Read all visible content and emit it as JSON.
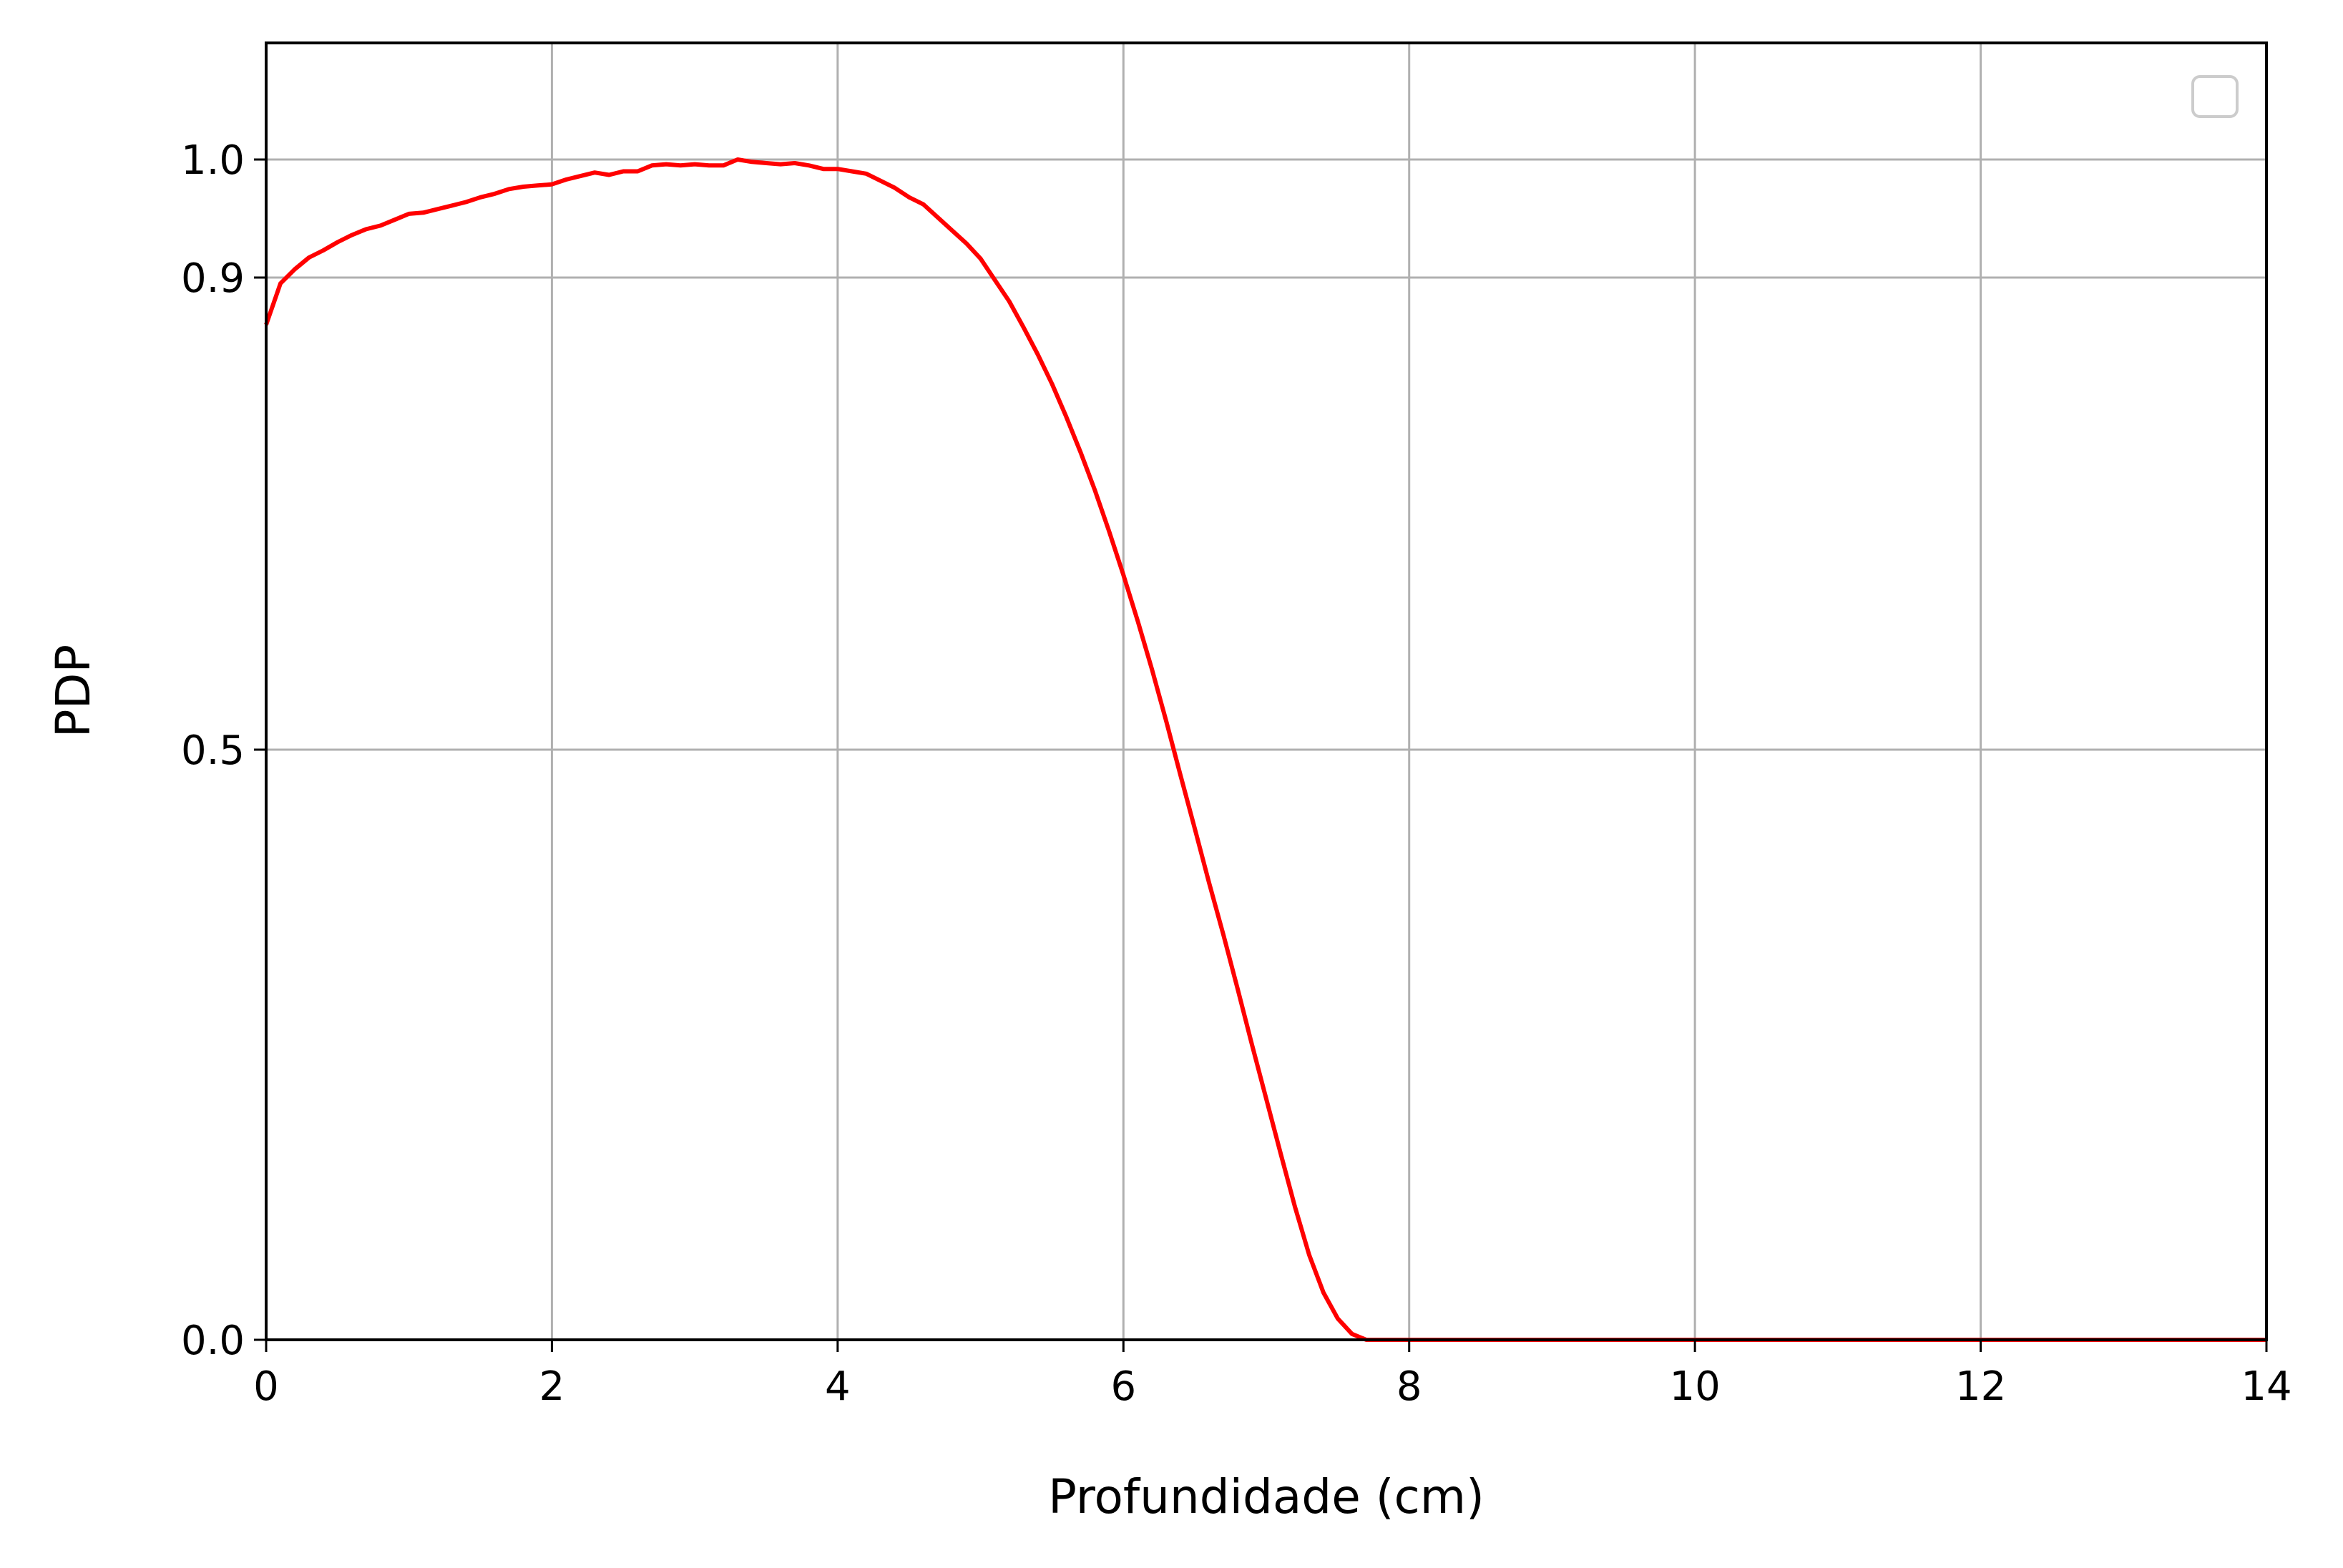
{
  "chart_data": {
    "type": "line",
    "title": "",
    "xlabel": "Profundidade (cm)",
    "ylabel": "PDP",
    "xlim": [
      0,
      14
    ],
    "ylim": [
      0.0,
      1.1
    ],
    "xticks": [
      0,
      2,
      4,
      6,
      8,
      10,
      12,
      14
    ],
    "xtick_labels": [
      "0",
      "2",
      "4",
      "6",
      "8",
      "10",
      "12",
      "14"
    ],
    "yticks": [
      0.0,
      0.5,
      0.9,
      1.0
    ],
    "ytick_labels": [
      "0.0",
      "0.5",
      "0.9",
      "1.0"
    ],
    "grid": true,
    "legend": {
      "placement": "top-right",
      "entries": []
    },
    "colors": {
      "line": "#ff0000",
      "grid": "#b0b0b0",
      "axes": "#000000"
    },
    "series": [
      {
        "x": [
          0.0,
          0.1,
          0.2,
          0.3,
          0.4,
          0.5,
          0.6,
          0.7,
          0.8,
          0.9,
          1.0,
          1.1,
          1.2,
          1.3,
          1.4,
          1.5,
          1.6,
          1.7,
          1.8,
          1.9,
          2.0,
          2.1,
          2.2,
          2.3,
          2.4,
          2.5,
          2.6,
          2.7,
          2.8,
          2.9,
          3.0,
          3.1,
          3.2,
          3.3,
          3.4,
          3.5,
          3.6,
          3.7,
          3.8,
          3.9,
          4.0,
          4.1,
          4.2,
          4.3,
          4.4,
          4.5,
          4.6,
          4.7,
          4.8,
          4.9,
          5.0,
          5.1,
          5.2,
          5.3,
          5.4,
          5.5,
          5.6,
          5.7,
          5.8,
          5.9,
          6.0,
          6.1,
          6.2,
          6.3,
          6.4,
          6.5,
          6.6,
          6.7,
          6.8,
          6.9,
          7.0,
          7.1,
          7.2,
          7.3,
          7.4,
          7.5,
          7.6,
          7.7,
          7.8,
          7.9,
          8.0,
          8.1,
          8.2,
          8.3,
          8.4,
          8.5,
          8.6,
          8.8,
          9.0,
          9.5,
          10.0,
          10.5,
          11.0,
          11.5,
          12.0,
          12.5,
          13.0,
          13.5,
          14.0
        ],
        "y": [
          0.86,
          0.895,
          0.907,
          0.917,
          0.923,
          0.93,
          0.936,
          0.941,
          0.944,
          0.949,
          0.954,
          0.955,
          0.958,
          0.961,
          0.964,
          0.968,
          0.971,
          0.975,
          0.977,
          0.978,
          0.979,
          0.983,
          0.986,
          0.989,
          0.987,
          0.99,
          0.99,
          0.995,
          0.996,
          0.995,
          0.996,
          0.995,
          0.995,
          1.0,
          0.998,
          0.997,
          0.996,
          0.997,
          0.995,
          0.992,
          0.992,
          0.99,
          0.988,
          0.982,
          0.976,
          0.968,
          0.962,
          0.951,
          0.94,
          0.929,
          0.916,
          0.898,
          0.88,
          0.858,
          0.835,
          0.81,
          0.782,
          0.752,
          0.72,
          0.685,
          0.648,
          0.609,
          0.568,
          0.524,
          0.478,
          0.433,
          0.387,
          0.343,
          0.297,
          0.25,
          0.204,
          0.158,
          0.113,
          0.072,
          0.04,
          0.018,
          0.005,
          0.0,
          0.0,
          0.0,
          0.0,
          0.0,
          0.0,
          0.0,
          0.0,
          0.0,
          0.0,
          0.0,
          0.0,
          0.0,
          0.0,
          0.0,
          0.0,
          0.0,
          0.0,
          0.0,
          0.0,
          0.0,
          0.0
        ]
      }
    ]
  }
}
